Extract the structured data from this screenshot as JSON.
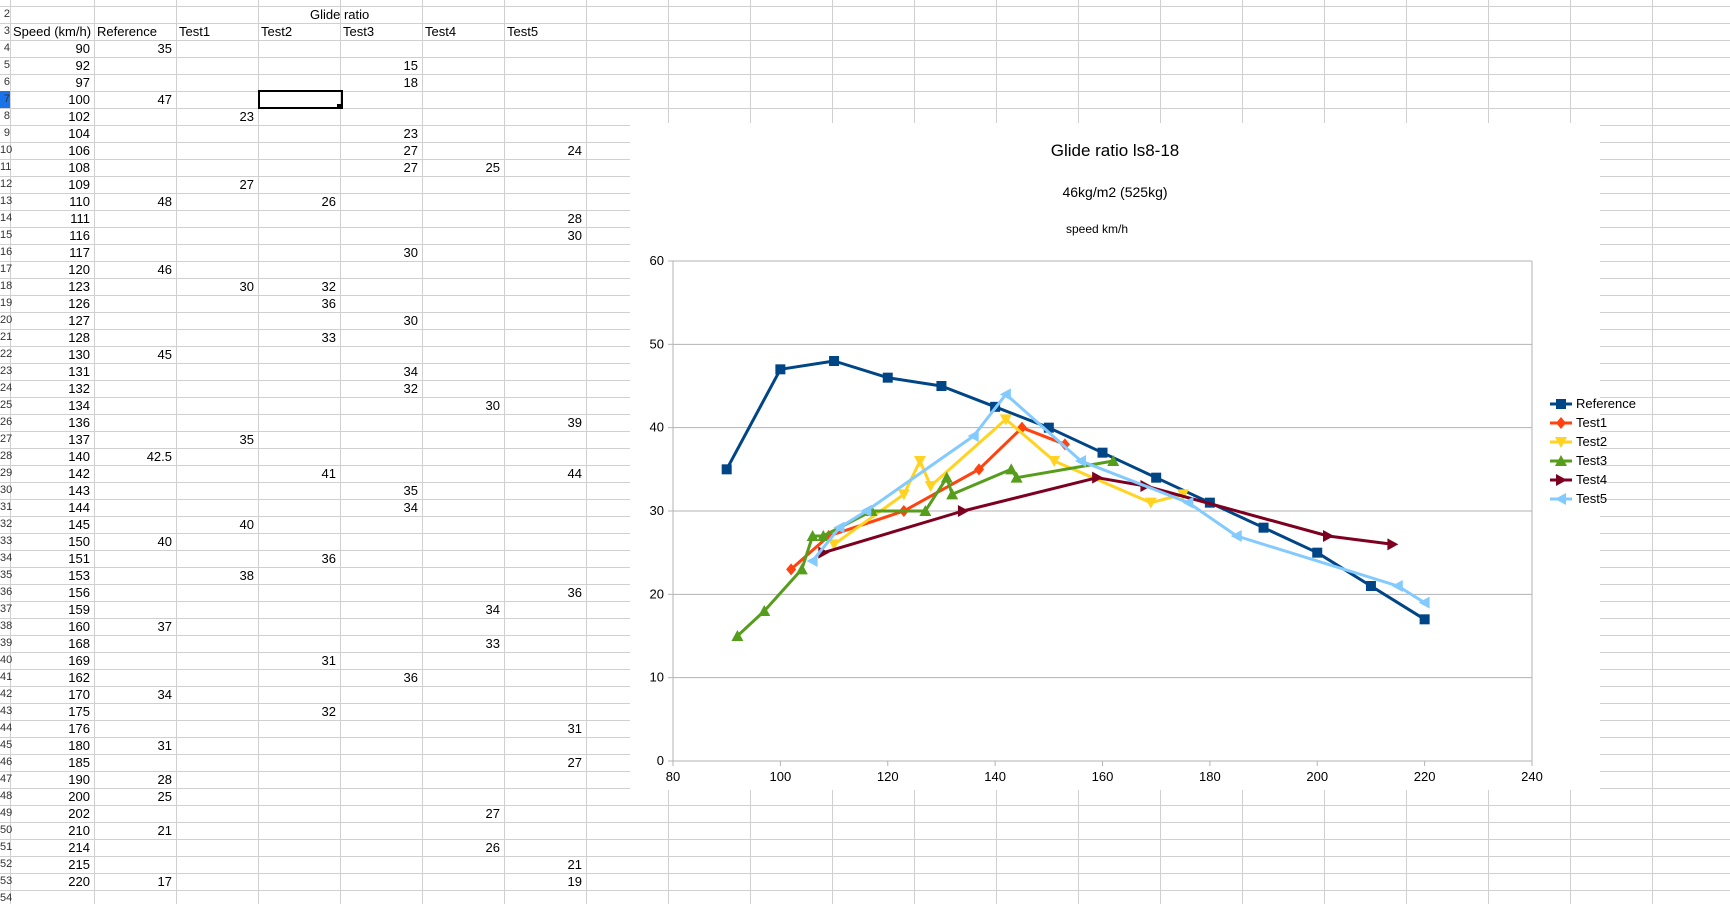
{
  "spreadsheet": {
    "title": "Glide ratio",
    "headers": [
      "Speed (km/h)",
      "Reference",
      "Test1",
      "Test2",
      "Test3",
      "Test4",
      "Test5"
    ],
    "row_numbers": [
      "2",
      "3",
      "4",
      "5",
      "6",
      "7",
      "8",
      "9",
      "10",
      "11",
      "12",
      "13",
      "14",
      "15",
      "16",
      "17",
      "18",
      "19",
      "20",
      "21",
      "22",
      "23",
      "24",
      "25",
      "26",
      "27",
      "28",
      "29",
      "30",
      "31",
      "32",
      "33",
      "34",
      "35",
      "36",
      "37",
      "38",
      "39",
      "40",
      "41",
      "42",
      "43",
      "44",
      "45",
      "46",
      "47",
      "48",
      "49",
      "50",
      "51",
      "52",
      "53",
      "54"
    ],
    "rows": [
      [
        "90",
        "35",
        "",
        "",
        "",
        "",
        ""
      ],
      [
        "92",
        "",
        "",
        "",
        "15",
        "",
        ""
      ],
      [
        "97",
        "",
        "",
        "",
        "18",
        "",
        ""
      ],
      [
        "100",
        "47",
        "",
        "",
        "",
        "",
        ""
      ],
      [
        "102",
        "",
        "23",
        "",
        "",
        "",
        ""
      ],
      [
        "104",
        "",
        "",
        "",
        "23",
        "",
        ""
      ],
      [
        "106",
        "",
        "",
        "",
        "27",
        "",
        "24"
      ],
      [
        "108",
        "",
        "",
        "",
        "27",
        "25",
        ""
      ],
      [
        "109",
        "",
        "27",
        "",
        "",
        "",
        ""
      ],
      [
        "110",
        "48",
        "",
        "26",
        "",
        "",
        ""
      ],
      [
        "111",
        "",
        "",
        "",
        "",
        "",
        "28"
      ],
      [
        "116",
        "",
        "",
        "",
        "",
        "",
        "30"
      ],
      [
        "117",
        "",
        "",
        "",
        "30",
        "",
        ""
      ],
      [
        "120",
        "46",
        "",
        "",
        "",
        "",
        ""
      ],
      [
        "123",
        "",
        "30",
        "32",
        "",
        "",
        ""
      ],
      [
        "126",
        "",
        "",
        "36",
        "",
        "",
        ""
      ],
      [
        "127",
        "",
        "",
        "",
        "30",
        "",
        ""
      ],
      [
        "128",
        "",
        "",
        "33",
        "",
        "",
        ""
      ],
      [
        "130",
        "45",
        "",
        "",
        "",
        "",
        ""
      ],
      [
        "131",
        "",
        "",
        "",
        "34",
        "",
        ""
      ],
      [
        "132",
        "",
        "",
        "",
        "32",
        "",
        ""
      ],
      [
        "134",
        "",
        "",
        "",
        "",
        "30",
        ""
      ],
      [
        "136",
        "",
        "",
        "",
        "",
        "",
        "39"
      ],
      [
        "137",
        "",
        "35",
        "",
        "",
        "",
        ""
      ],
      [
        "140",
        "42.5",
        "",
        "",
        "",
        "",
        ""
      ],
      [
        "142",
        "",
        "",
        "41",
        "",
        "",
        "44"
      ],
      [
        "143",
        "",
        "",
        "",
        "35",
        "",
        ""
      ],
      [
        "144",
        "",
        "",
        "",
        "34",
        "",
        ""
      ],
      [
        "145",
        "",
        "40",
        "",
        "",
        "",
        ""
      ],
      [
        "150",
        "40",
        "",
        "",
        "",
        "",
        ""
      ],
      [
        "151",
        "",
        "",
        "36",
        "",
        "",
        ""
      ],
      [
        "153",
        "",
        "38",
        "",
        "",
        "",
        ""
      ],
      [
        "156",
        "",
        "",
        "",
        "",
        "",
        "36"
      ],
      [
        "159",
        "",
        "",
        "",
        "",
        "34",
        ""
      ],
      [
        "160",
        "37",
        "",
        "",
        "",
        "",
        ""
      ],
      [
        "168",
        "",
        "",
        "",
        "",
        "33",
        ""
      ],
      [
        "169",
        "",
        "",
        "31",
        "",
        "",
        ""
      ],
      [
        "162",
        "",
        "",
        "",
        "36",
        "",
        ""
      ],
      [
        "170",
        "34",
        "",
        "",
        "",
        "",
        ""
      ],
      [
        "175",
        "",
        "",
        "32",
        "",
        "",
        ""
      ],
      [
        "176",
        "",
        "",
        "",
        "",
        "",
        "31"
      ],
      [
        "180",
        "31",
        "",
        "",
        "",
        "",
        ""
      ],
      [
        "185",
        "",
        "",
        "",
        "",
        "",
        "27"
      ],
      [
        "190",
        "28",
        "",
        "",
        "",
        "",
        ""
      ],
      [
        "200",
        "25",
        "",
        "",
        "",
        "",
        ""
      ],
      [
        "202",
        "",
        "",
        "",
        "",
        "27",
        ""
      ],
      [
        "210",
        "21",
        "",
        "",
        "",
        "",
        ""
      ],
      [
        "214",
        "",
        "",
        "",
        "",
        "26",
        ""
      ],
      [
        "215",
        "",
        "",
        "",
        "",
        "",
        "21"
      ],
      [
        "220",
        "17",
        "",
        "",
        "",
        "",
        "19"
      ]
    ]
  },
  "chart_data": {
    "type": "line",
    "title": "Glide ratio ls8-18",
    "subtitle": "46kg/m2 (525kg)",
    "axis_note": "speed km/h",
    "xlim": [
      80,
      240
    ],
    "ylim": [
      0,
      60
    ],
    "x_ticks": [
      80,
      100,
      120,
      140,
      160,
      180,
      200,
      220,
      240
    ],
    "y_ticks": [
      0,
      10,
      20,
      30,
      40,
      50,
      60
    ],
    "grid": true,
    "legend_position": "right",
    "series": [
      {
        "name": "Reference",
        "color": "#004586",
        "marker": "square",
        "points": [
          [
            90,
            35
          ],
          [
            100,
            47
          ],
          [
            110,
            48
          ],
          [
            120,
            46
          ],
          [
            130,
            45
          ],
          [
            140,
            42.5
          ],
          [
            150,
            40
          ],
          [
            160,
            37
          ],
          [
            170,
            34
          ],
          [
            180,
            31
          ],
          [
            190,
            28
          ],
          [
            200,
            25
          ],
          [
            210,
            21
          ],
          [
            220,
            17
          ]
        ]
      },
      {
        "name": "Test1",
        "color": "#ff420e",
        "marker": "diamond",
        "points": [
          [
            102,
            23
          ],
          [
            109,
            27
          ],
          [
            123,
            30
          ],
          [
            137,
            35
          ],
          [
            145,
            40
          ],
          [
            153,
            38
          ]
        ]
      },
      {
        "name": "Test2",
        "color": "#ffd320",
        "marker": "triangle-down",
        "points": [
          [
            110,
            26
          ],
          [
            123,
            32
          ],
          [
            126,
            36
          ],
          [
            128,
            33
          ],
          [
            142,
            41
          ],
          [
            151,
            36
          ],
          [
            169,
            31
          ],
          [
            175,
            32
          ]
        ]
      },
      {
        "name": "Test3",
        "color": "#579d1c",
        "marker": "triangle-up",
        "points": [
          [
            92,
            15
          ],
          [
            97,
            18
          ],
          [
            104,
            23
          ],
          [
            106,
            27
          ],
          [
            108,
            27
          ],
          [
            117,
            30
          ],
          [
            127,
            30
          ],
          [
            131,
            34
          ],
          [
            132,
            32
          ],
          [
            143,
            35
          ],
          [
            144,
            34
          ],
          [
            162,
            36
          ]
        ]
      },
      {
        "name": "Test4",
        "color": "#7e0021",
        "marker": "triangle-right",
        "points": [
          [
            108,
            25
          ],
          [
            134,
            30
          ],
          [
            159,
            34
          ],
          [
            168,
            33
          ],
          [
            202,
            27
          ],
          [
            214,
            26
          ]
        ]
      },
      {
        "name": "Test5",
        "color": "#83caff",
        "marker": "triangle-left",
        "points": [
          [
            106,
            24
          ],
          [
            111,
            28
          ],
          [
            116,
            30
          ],
          [
            136,
            39
          ],
          [
            142,
            44
          ],
          [
            156,
            36
          ],
          [
            176,
            31
          ],
          [
            185,
            27
          ],
          [
            215,
            21
          ],
          [
            220,
            19
          ]
        ]
      }
    ]
  }
}
